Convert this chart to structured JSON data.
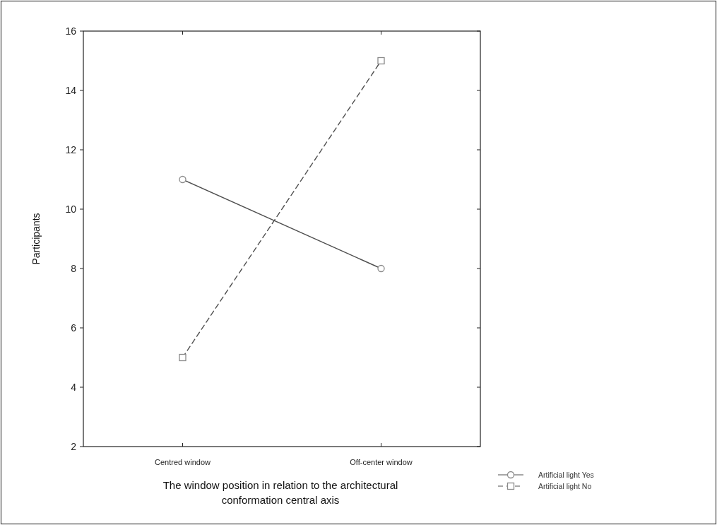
{
  "chart_data": {
    "type": "line",
    "xlabel": "The window position in relation to the architectural conformation central axis",
    "ylabel": "Participants",
    "categories": [
      "Centred window",
      "Off-center window"
    ],
    "series": [
      {
        "name": "Artificial light Yes",
        "color": "#505050",
        "values": [
          11,
          8
        ],
        "marker": "circle",
        "line_style": "solid"
      },
      {
        "name": "Artificial light No",
        "color": "#505050",
        "values": [
          5,
          15
        ],
        "marker": "square",
        "line_style": "dashed"
      }
    ],
    "ylim": [
      2,
      16
    ],
    "yticks": [
      2,
      4,
      6,
      8,
      10,
      12,
      14,
      16
    ],
    "grid": false,
    "legend": "bottom right"
  }
}
